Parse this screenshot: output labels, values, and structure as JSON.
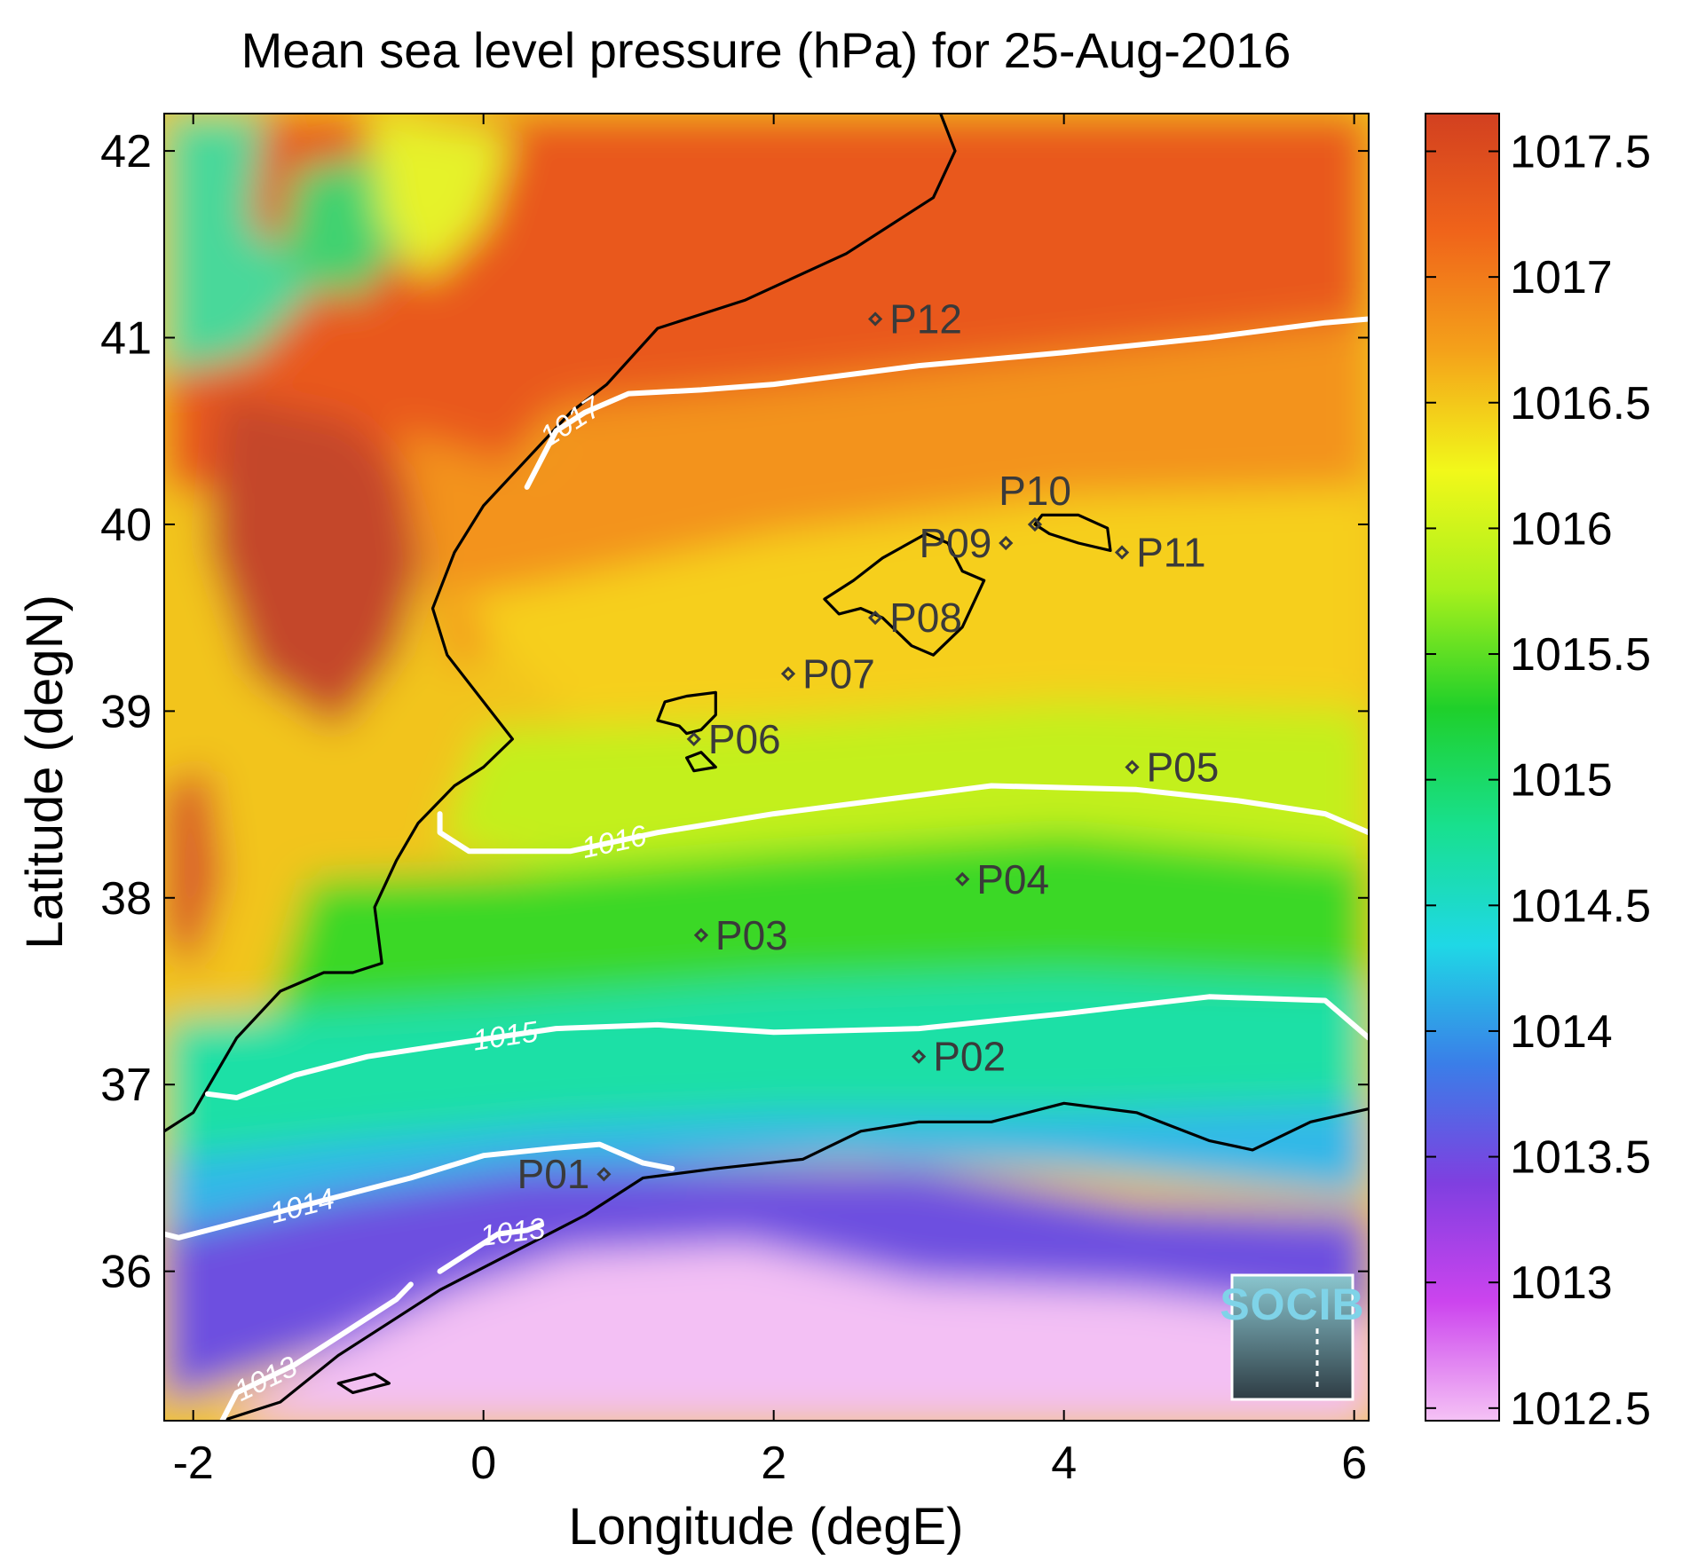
{
  "chart_data": {
    "type": "heatmap",
    "title": "Mean sea level pressure (hPa) for 25-Aug-2016",
    "xlabel": "Longitude (degE)",
    "ylabel": "Latitude (degN)",
    "xlim": [
      -2.2,
      6.1
    ],
    "ylim": [
      35.2,
      42.2
    ],
    "xticks": [
      -2,
      0,
      2,
      4,
      6
    ],
    "yticks": [
      36,
      37,
      38,
      39,
      40,
      41,
      42
    ],
    "colorbar": {
      "range": [
        1012.45,
        1017.65
      ],
      "ticks": [
        1012.5,
        1013,
        1013.5,
        1014,
        1014.5,
        1015,
        1015.5,
        1016,
        1016.5,
        1017,
        1017.5
      ],
      "tick_labels": [
        "1012.5",
        "1013",
        "1013.5",
        "1014",
        "1014.5",
        "1015",
        "1015.5",
        "1016",
        "1016.5",
        "1017",
        "1017.5"
      ],
      "colormap": [
        "#f5c2f5",
        "#cc44ee",
        "#7f3fe0",
        "#3a7ee8",
        "#1fd8e6",
        "#18e08e",
        "#1fd02a",
        "#a8f01c",
        "#f2f81a",
        "#f4a21a",
        "#f0641a",
        "#d24020"
      ]
    },
    "contours": [
      {
        "level": 1013,
        "label": "1013",
        "points": [
          [
            -1.8,
            35.2
          ],
          [
            -1.7,
            35.35
          ],
          [
            -1.3,
            35.5
          ],
          [
            -0.9,
            35.7
          ],
          [
            -0.6,
            35.85
          ],
          [
            -0.5,
            35.93
          ]
        ]
      },
      {
        "level": 1013,
        "label": "1013",
        "points": [
          [
            -0.3,
            36.0
          ],
          [
            0.1,
            36.2
          ],
          [
            0.3,
            36.22
          ],
          [
            0.4,
            36.25
          ]
        ]
      },
      {
        "level": 1014,
        "label": "1014",
        "points": [
          [
            -2.2,
            36.2
          ],
          [
            -2.1,
            36.18
          ],
          [
            -1.5,
            36.3
          ],
          [
            -1.0,
            36.4
          ],
          [
            -0.5,
            36.5
          ],
          [
            0.0,
            36.62
          ],
          [
            0.5,
            36.66
          ],
          [
            0.8,
            36.68
          ],
          [
            1.1,
            36.58
          ],
          [
            1.3,
            36.55
          ]
        ]
      },
      {
        "level": 1015,
        "label": "1015",
        "points": [
          [
            -1.9,
            36.95
          ],
          [
            -1.7,
            36.93
          ],
          [
            -1.3,
            37.05
          ],
          [
            -0.8,
            37.15
          ],
          [
            -0.2,
            37.22
          ],
          [
            0.5,
            37.3
          ],
          [
            1.2,
            37.32
          ],
          [
            2.0,
            37.28
          ],
          [
            3.0,
            37.3
          ],
          [
            4.0,
            37.38
          ],
          [
            5.0,
            37.47
          ],
          [
            5.8,
            37.45
          ],
          [
            6.1,
            37.25
          ]
        ]
      },
      {
        "level": 1016,
        "label": "1016",
        "points": [
          [
            -0.3,
            38.45
          ],
          [
            -0.3,
            38.35
          ],
          [
            -0.1,
            38.25
          ],
          [
            0.6,
            38.25
          ],
          [
            1.2,
            38.35
          ],
          [
            2.0,
            38.45
          ],
          [
            3.0,
            38.55
          ],
          [
            3.5,
            38.6
          ],
          [
            4.5,
            38.58
          ],
          [
            5.2,
            38.52
          ],
          [
            5.8,
            38.45
          ],
          [
            6.1,
            38.35
          ]
        ]
      },
      {
        "level": 1017,
        "label": "1017",
        "points": [
          [
            0.3,
            40.2
          ],
          [
            0.5,
            40.5
          ],
          [
            0.7,
            40.6
          ],
          [
            1.0,
            40.7
          ],
          [
            1.5,
            40.72
          ],
          [
            2.0,
            40.75
          ],
          [
            3.0,
            40.85
          ],
          [
            4.0,
            40.92
          ],
          [
            5.0,
            41.0
          ],
          [
            5.8,
            41.08
          ],
          [
            6.1,
            41.1
          ]
        ]
      }
    ],
    "stations": [
      {
        "name": "P01",
        "lon": 0.83,
        "lat": 36.52,
        "label_side": "left"
      },
      {
        "name": "P02",
        "lon": 3.0,
        "lat": 37.15,
        "label_side": "right"
      },
      {
        "name": "P03",
        "lon": 1.5,
        "lat": 37.8,
        "label_side": "right"
      },
      {
        "name": "P04",
        "lon": 3.3,
        "lat": 38.1,
        "label_side": "right"
      },
      {
        "name": "P05",
        "lon": 4.47,
        "lat": 38.7,
        "label_side": "right"
      },
      {
        "name": "P06",
        "lon": 1.45,
        "lat": 38.85,
        "label_side": "right"
      },
      {
        "name": "P07",
        "lon": 2.1,
        "lat": 39.2,
        "label_side": "right"
      },
      {
        "name": "P08",
        "lon": 2.7,
        "lat": 39.5,
        "label_side": "right"
      },
      {
        "name": "P09",
        "lon": 3.6,
        "lat": 39.9,
        "label_side": "left"
      },
      {
        "name": "P10",
        "lon": 3.8,
        "lat": 40.0,
        "label_side": "above"
      },
      {
        "name": "P11",
        "lon": 4.4,
        "lat": 39.85,
        "label_side": "right"
      },
      {
        "name": "P12",
        "lon": 2.7,
        "lat": 41.1,
        "label_side": "right"
      }
    ]
  },
  "logo": {
    "text": "SOCIB"
  }
}
